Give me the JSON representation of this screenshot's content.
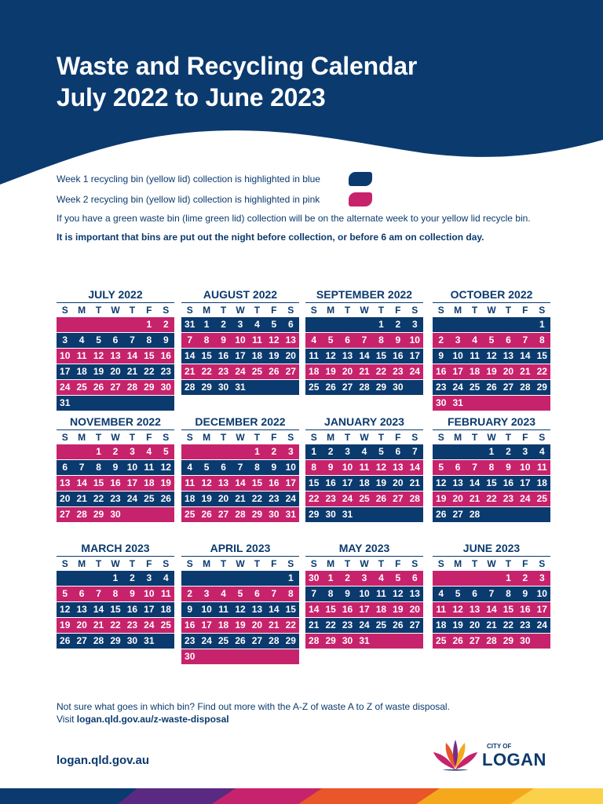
{
  "header": {
    "title_line1": "Waste and Recycling Calendar",
    "title_line2": "July 2022 to June 2023"
  },
  "legend": {
    "week1": "Week 1 recycling bin (yellow lid) collection is highlighted in blue",
    "week2": "Week 2 recycling bin (yellow lid) collection is highlighted in pink",
    "green_note": "If you have a green waste bin (lime green lid) collection will be on the alternate week to your yellow lid recycle bin.",
    "important": "It is important that bins are put out the night before collection, or before 6 am on collection day."
  },
  "weekdays": [
    "S",
    "M",
    "T",
    "W",
    "T",
    "F",
    "S"
  ],
  "colors": {
    "blue": "#0b3a6e",
    "pink": "#c7236c"
  },
  "months": [
    {
      "name": "JULY 2022",
      "start": 5,
      "days": 31,
      "first": "pink",
      "prev": []
    },
    {
      "name": "AUGUST 2022",
      "start": 1,
      "days": 31,
      "first": "blue",
      "prev": [
        31
      ]
    },
    {
      "name": "SEPTEMBER 2022",
      "start": 4,
      "days": 30,
      "first": "blue",
      "prev": []
    },
    {
      "name": "OCTOBER 2022",
      "start": 6,
      "days": 31,
      "first": "blue",
      "prev": []
    },
    {
      "name": "NOVEMBER 2022",
      "start": 2,
      "days": 30,
      "first": "pink",
      "prev": []
    },
    {
      "name": "DECEMBER 2022",
      "start": 4,
      "days": 31,
      "first": "pink",
      "prev": []
    },
    {
      "name": "JANUARY 2023",
      "start": 0,
      "days": 31,
      "first": "blue",
      "prev": []
    },
    {
      "name": "FEBRUARY 2023",
      "start": 3,
      "days": 28,
      "first": "blue",
      "prev": []
    },
    {
      "name": "MARCH 2023",
      "start": 3,
      "days": 31,
      "first": "blue",
      "prev": []
    },
    {
      "name": "APRIL 2023",
      "start": 6,
      "days": 30,
      "first": "blue",
      "prev": []
    },
    {
      "name": "MAY 2023",
      "start": 1,
      "days": 31,
      "first": "pink",
      "prev": [
        30
      ]
    },
    {
      "name": "JUNE 2023",
      "start": 4,
      "days": 30,
      "first": "pink",
      "prev": []
    }
  ],
  "footer": {
    "line1": "Not sure what goes in which bin? Find out more with the A-Z of waste A to Z of waste disposal.",
    "visit": "Visit",
    "link": "logan.qld.gov.au/z-waste-disposal",
    "site": "logan.qld.gov.au"
  },
  "logo": {
    "small": "CITY OF",
    "big": "LOGAN",
    "icon": "lotus-flower-icon"
  }
}
